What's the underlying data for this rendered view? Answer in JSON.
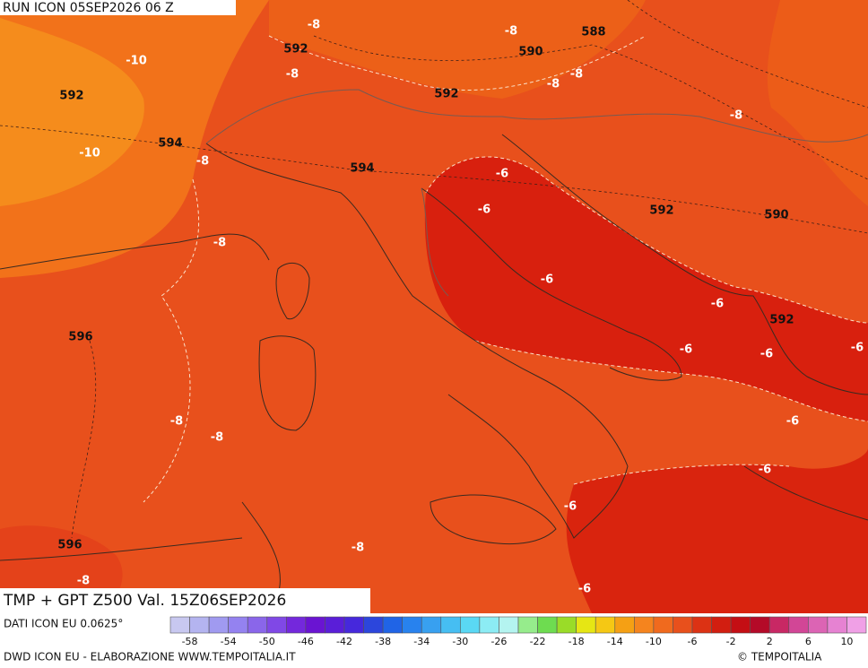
{
  "header": {
    "run": "RUN ICON 05SEP2026 06 Z",
    "field": "TMP + GPT Z500 Val. 15Z06SEP2026",
    "source": "DATI ICON EU 0.0625°",
    "credit": "DWD ICON EU - ELABORAZIONE WWW.TEMPOITALIA.IT",
    "copyright": "© TEMPOITALIA"
  },
  "temperature_labels": [
    -8,
    -10,
    -8,
    -8,
    -8,
    -8,
    -8,
    -10,
    -8,
    -6,
    -6,
    -8,
    -6,
    -6,
    -6,
    -6,
    -6,
    -6,
    -8,
    -8,
    -6,
    -6,
    -8,
    -8,
    -6
  ],
  "geopotential_labels": [
    592,
    590,
    588,
    592,
    592,
    594,
    594,
    592,
    590,
    592,
    596,
    596
  ],
  "colorbar": {
    "colors": [
      "#c8c8f0",
      "#b4b4f0",
      "#a09af0",
      "#9482f0",
      "#8a66ea",
      "#8048e6",
      "#7428dc",
      "#6a14d2",
      "#5a1ed8",
      "#4628dc",
      "#2c46dc",
      "#2064e6",
      "#2882ee",
      "#38a0f0",
      "#46bef2",
      "#5ad8f4",
      "#8cecf4",
      "#b4f4f0",
      "#96ec8c",
      "#6edc50",
      "#9adc28",
      "#e6e614",
      "#f5c814",
      "#f5a014",
      "#f5841e",
      "#f06a1e",
      "#e8501c",
      "#dc3214",
      "#d21e10",
      "#c40e14",
      "#b40a28",
      "#c82864",
      "#d24696",
      "#dc64b4",
      "#e682d2",
      "#f0a0e6"
    ],
    "labels": [
      -58,
      -54,
      -50,
      -46,
      -42,
      -38,
      -34,
      -30,
      -26,
      -22,
      -18,
      -14,
      -10,
      -6,
      -2,
      2,
      6,
      10
    ]
  }
}
